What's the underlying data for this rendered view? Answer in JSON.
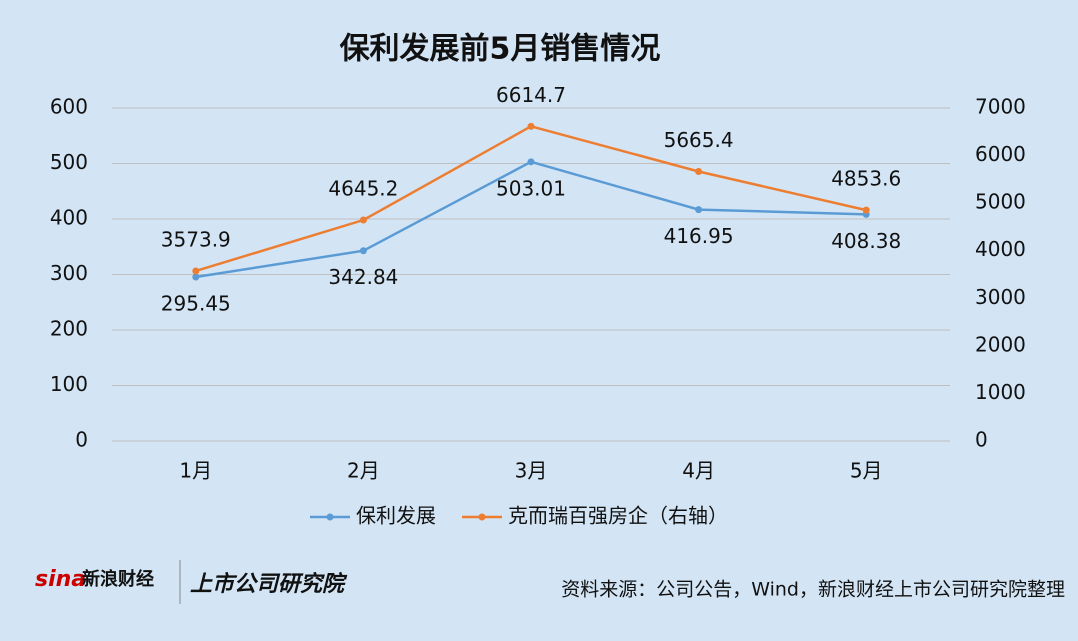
{
  "chart_data": {
    "type": "line",
    "title": "保利发展前5月销售情况",
    "categories": [
      "1月",
      "2月",
      "3月",
      "4月",
      "5月"
    ],
    "series": [
      {
        "name": "保利发展",
        "color": "#5b9bd5",
        "values": [
          295.45,
          342.84,
          503.01,
          416.95,
          408.38
        ]
      },
      {
        "name": "克而瑞百强房企（右轴）",
        "color": "#ed7d31",
        "axis": "y2",
        "values": [
          3573.9,
          4645.2,
          6614.7,
          5665.4,
          4853.6
        ]
      }
    ],
    "ylim": [
      0,
      600
    ],
    "yticks": [
      0,
      100,
      200,
      300,
      400,
      500,
      600
    ],
    "y2lim": [
      0,
      7000
    ],
    "y2ticks": [
      0,
      1000,
      2000,
      3000,
      4000,
      5000,
      6000,
      7000
    ],
    "grid": true,
    "legend": "bottom",
    "source": "资料来源：公司公告，Wind，新浪财经上市公司研究院整理",
    "logos": [
      "sina",
      "新浪财经",
      "上市公司研究院"
    ]
  }
}
